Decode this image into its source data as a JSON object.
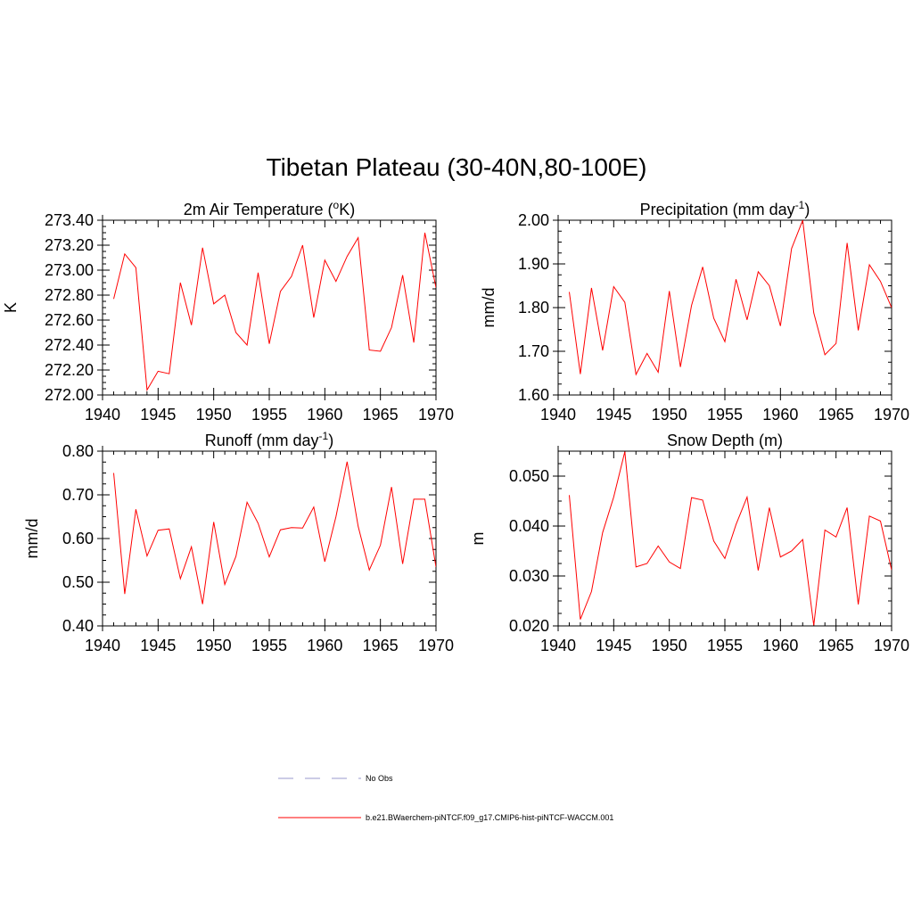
{
  "title": "Tibetan Plateau (30-40N,80-100E)",
  "legend": [
    {
      "label": "No Obs",
      "color": "#9999cc",
      "style": "dashed"
    },
    {
      "label": "b.e21.BWaerchem-piNTCF.f09_g17.CMIP6-hist-piNTCF-WACCM.001",
      "color": "#ff0000",
      "style": "solid"
    }
  ],
  "chart_data": [
    {
      "type": "line",
      "title_main": "2m Air Temperature (",
      "title_sup": "o",
      "title_post": "K)",
      "ylabel": "K",
      "xlim": [
        1940,
        1970
      ],
      "ylim": [
        272.0,
        273.4
      ],
      "yticks": [
        "272.00",
        "272.20",
        "272.40",
        "272.60",
        "272.80",
        "273.00",
        "273.20",
        "273.40"
      ],
      "ytick_values": [
        272.0,
        272.2,
        272.4,
        272.6,
        272.8,
        273.0,
        273.2,
        273.4
      ],
      "xticks": [
        "1940",
        "1945",
        "1950",
        "1955",
        "1960",
        "1965",
        "1970"
      ],
      "xtick_values": [
        1940,
        1945,
        1950,
        1955,
        1960,
        1965,
        1970
      ],
      "color": "#ff0000",
      "x": [
        1941,
        1942,
        1943,
        1944,
        1945,
        1946,
        1947,
        1948,
        1949,
        1950,
        1951,
        1952,
        1953,
        1954,
        1955,
        1956,
        1957,
        1958,
        1959,
        1960,
        1961,
        1962,
        1963,
        1964,
        1965,
        1966,
        1967,
        1968,
        1969,
        1970
      ],
      "y": [
        272.77,
        273.13,
        273.02,
        272.04,
        272.19,
        272.17,
        272.9,
        272.56,
        273.18,
        272.73,
        272.8,
        272.5,
        272.4,
        272.98,
        272.41,
        272.83,
        272.95,
        273.2,
        272.62,
        273.08,
        272.91,
        273.11,
        273.26,
        272.36,
        272.35,
        272.54,
        272.96,
        272.42,
        273.3,
        272.86
      ]
    },
    {
      "type": "line",
      "title_main": "Precipitation (mm day",
      "title_sup": "-1",
      "title_post": ")",
      "ylabel": "mm/d",
      "xlim": [
        1940,
        1970
      ],
      "ylim": [
        1.6,
        2.0
      ],
      "yticks": [
        "1.60",
        "1.70",
        "1.80",
        "1.90",
        "2.00"
      ],
      "ytick_values": [
        1.6,
        1.7,
        1.8,
        1.9,
        2.0
      ],
      "xticks": [
        "1940",
        "1945",
        "1950",
        "1955",
        "1960",
        "1965",
        "1970"
      ],
      "xtick_values": [
        1940,
        1945,
        1950,
        1955,
        1960,
        1965,
        1970
      ],
      "color": "#ff0000",
      "x": [
        1941,
        1942,
        1943,
        1944,
        1945,
        1946,
        1947,
        1948,
        1949,
        1950,
        1951,
        1952,
        1953,
        1954,
        1955,
        1956,
        1957,
        1958,
        1959,
        1960,
        1961,
        1962,
        1963,
        1964,
        1965,
        1966,
        1967,
        1968,
        1969,
        1970
      ],
      "y": [
        1.836,
        1.648,
        1.845,
        1.702,
        1.848,
        1.812,
        1.647,
        1.695,
        1.652,
        1.838,
        1.664,
        1.805,
        1.893,
        1.776,
        1.722,
        1.865,
        1.772,
        1.882,
        1.85,
        1.758,
        1.935,
        2.0,
        1.788,
        1.692,
        1.718,
        1.948,
        1.748,
        1.898,
        1.86,
        1.8
      ]
    },
    {
      "type": "line",
      "title_main": "Runoff (mm day",
      "title_sup": "-1",
      "title_post": ")",
      "ylabel": "mm/d",
      "xlim": [
        1940,
        1970
      ],
      "ylim": [
        0.4,
        0.8
      ],
      "yticks": [
        "0.40",
        "0.50",
        "0.60",
        "0.70",
        "0.80"
      ],
      "ytick_values": [
        0.4,
        0.5,
        0.6,
        0.7,
        0.8
      ],
      "xticks": [
        "1940",
        "1945",
        "1950",
        "1955",
        "1960",
        "1965",
        "1970"
      ],
      "xtick_values": [
        1940,
        1945,
        1950,
        1955,
        1960,
        1965,
        1970
      ],
      "color": "#ff0000",
      "x": [
        1941,
        1942,
        1943,
        1944,
        1945,
        1946,
        1947,
        1948,
        1949,
        1950,
        1951,
        1952,
        1953,
        1954,
        1955,
        1956,
        1957,
        1958,
        1959,
        1960,
        1961,
        1962,
        1963,
        1964,
        1965,
        1966,
        1967,
        1968,
        1969,
        1970
      ],
      "y": [
        0.75,
        0.473,
        0.667,
        0.56,
        0.619,
        0.622,
        0.508,
        0.581,
        0.45,
        0.638,
        0.495,
        0.559,
        0.683,
        0.635,
        0.558,
        0.62,
        0.625,
        0.624,
        0.672,
        0.547,
        0.65,
        0.776,
        0.628,
        0.528,
        0.585,
        0.718,
        0.542,
        0.69,
        0.69,
        0.535
      ]
    },
    {
      "type": "line",
      "title_main": "Snow Depth (m)",
      "title_sup": "",
      "title_post": "",
      "ylabel": "m",
      "xlim": [
        1940,
        1970
      ],
      "ylim": [
        0.02,
        0.055
      ],
      "yticks": [
        "0.020",
        "0.030",
        "0.040",
        "0.050"
      ],
      "ytick_values": [
        0.02,
        0.03,
        0.04,
        0.05
      ],
      "xticks": [
        "1940",
        "1945",
        "1950",
        "1955",
        "1960",
        "1965",
        "1970"
      ],
      "xtick_values": [
        1940,
        1945,
        1950,
        1955,
        1960,
        1965,
        1970
      ],
      "color": "#ff0000",
      "x": [
        1941,
        1942,
        1943,
        1944,
        1945,
        1946,
        1947,
        1948,
        1949,
        1950,
        1951,
        1952,
        1953,
        1954,
        1955,
        1956,
        1957,
        1958,
        1959,
        1960,
        1961,
        1962,
        1963,
        1964,
        1965,
        1966,
        1967,
        1968,
        1969,
        1970
      ],
      "y": [
        0.0462,
        0.0213,
        0.0269,
        0.0387,
        0.0458,
        0.0549,
        0.0318,
        0.0325,
        0.036,
        0.0328,
        0.0315,
        0.0457,
        0.0452,
        0.037,
        0.0335,
        0.0403,
        0.0458,
        0.0311,
        0.0437,
        0.0338,
        0.035,
        0.0373,
        0.0201,
        0.0392,
        0.0378,
        0.0437,
        0.0243,
        0.042,
        0.041,
        0.0312
      ]
    }
  ]
}
